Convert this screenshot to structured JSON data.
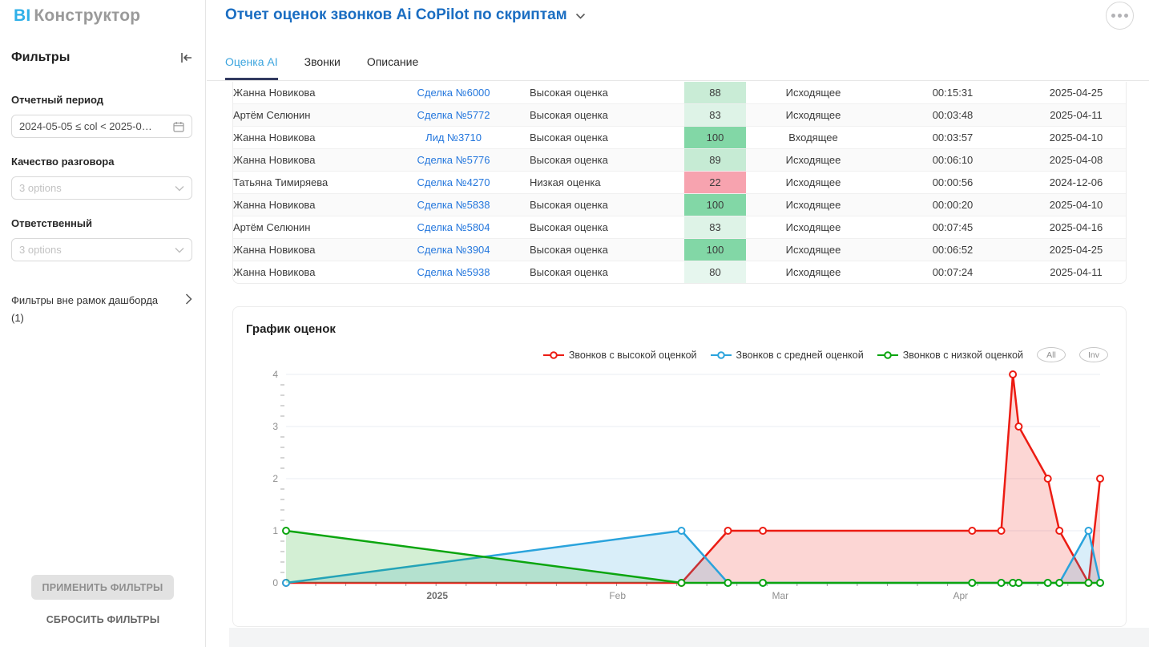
{
  "app": {
    "logo_bi": "BI",
    "logo_name": "Конструктор"
  },
  "sidebar": {
    "title": "Фильтры",
    "filters": [
      {
        "label": "Отчетный период",
        "value": "2024-05-05 ≤ col < 2025-0…"
      },
      {
        "label": "Качество разговора",
        "placeholder": "3 options"
      },
      {
        "label": "Ответственный",
        "placeholder": "3 options"
      }
    ],
    "outer_filters_label": "Фильтры вне рамок дашборда",
    "outer_filters_count": "(1)",
    "apply_button": "ПРИМЕНИТЬ ФИЛЬТРЫ",
    "reset_button": "СБРОСИТЬ ФИЛЬТРЫ"
  },
  "header": {
    "title": "Отчет оценок звонков Ai CoPilot по скриптам"
  },
  "tabs": [
    {
      "label": "Оценка AI",
      "active": true
    },
    {
      "label": "Звонки",
      "active": false
    },
    {
      "label": "Описание",
      "active": false
    }
  ],
  "table": {
    "rows": [
      {
        "responsible": "Жанна Новикова",
        "deal": "Сделка №6000",
        "quality": "Высокая оценка",
        "score": "88",
        "score_bg": "#c9ecd6",
        "direction": "Исходящее",
        "duration": "00:15:31",
        "date": "2025-04-25"
      },
      {
        "responsible": "Артём Селюнин",
        "deal": "Сделка №5772",
        "quality": "Высокая оценка",
        "score": "83",
        "score_bg": "#def3e7",
        "direction": "Исходящее",
        "duration": "00:03:48",
        "date": "2025-04-11"
      },
      {
        "responsible": "Жанна Новикова",
        "deal": "Лид №3710",
        "quality": "Высокая оценка",
        "score": "100",
        "score_bg": "#82d7a6",
        "direction": "Входящее",
        "duration": "00:03:57",
        "date": "2025-04-10"
      },
      {
        "responsible": "Жанна Новикова",
        "deal": "Сделка №5776",
        "quality": "Высокая оценка",
        "score": "89",
        "score_bg": "#c6ebd4",
        "direction": "Исходящее",
        "duration": "00:06:10",
        "date": "2025-04-08"
      },
      {
        "responsible": "Татьяна Тимиряева",
        "deal": "Сделка №4270",
        "quality": "Низкая оценка",
        "score": "22",
        "score_bg": "#f7a3af",
        "direction": "Исходящее",
        "duration": "00:00:56",
        "date": "2024-12-06"
      },
      {
        "responsible": "Жанна Новикова",
        "deal": "Сделка №5838",
        "quality": "Высокая оценка",
        "score": "100",
        "score_bg": "#82d7a6",
        "direction": "Исходящее",
        "duration": "00:00:20",
        "date": "2025-04-10"
      },
      {
        "responsible": "Артём Селюнин",
        "deal": "Сделка №5804",
        "quality": "Высокая оценка",
        "score": "83",
        "score_bg": "#def3e7",
        "direction": "Исходящее",
        "duration": "00:07:45",
        "date": "2025-04-16"
      },
      {
        "responsible": "Жанна Новикова",
        "deal": "Сделка №3904",
        "quality": "Высокая оценка",
        "score": "100",
        "score_bg": "#82d7a6",
        "direction": "Исходящее",
        "duration": "00:06:52",
        "date": "2025-04-25"
      },
      {
        "responsible": "Жанна Новикова",
        "deal": "Сделка №5938",
        "quality": "Высокая оценка",
        "score": "80",
        "score_bg": "#e6f6ee",
        "direction": "Исходящее",
        "duration": "00:07:24",
        "date": "2025-04-11"
      }
    ]
  },
  "chart": {
    "title": "График оценок",
    "range_buttons": [
      "All",
      "Inv"
    ]
  },
  "chart_data": {
    "type": "area",
    "x_dates": [
      "2024-12-06",
      "2025-02-12",
      "2025-02-20",
      "2025-02-26",
      "2025-04-03",
      "2025-04-08",
      "2025-04-10",
      "2025-04-11",
      "2025-04-16",
      "2025-04-18",
      "2025-04-23",
      "2025-04-25"
    ],
    "series": [
      {
        "name": "Звонков с высокой оценкой",
        "color": "#ec1c13",
        "values": [
          0,
          0,
          1,
          1,
          1,
          1,
          4,
          3,
          2,
          1,
          0,
          2
        ]
      },
      {
        "name": "Звонков с средней оценкой",
        "color": "#2aa3dc",
        "values": [
          0,
          1,
          0,
          0,
          0,
          0,
          0,
          0,
          0,
          0,
          1,
          0
        ]
      },
      {
        "name": "Звонков с низкой оценкой",
        "color": "#0ba50f",
        "values": [
          1,
          0,
          0,
          0,
          0,
          0,
          0,
          0,
          0,
          0,
          0,
          0
        ]
      }
    ],
    "ylim": [
      0,
      4
    ],
    "y_ticks": [
      0,
      1,
      2,
      3,
      4
    ],
    "x_axis_labels": [
      {
        "text": "2025",
        "date": "2025-01-01",
        "bold": true
      },
      {
        "text": "Feb",
        "date": "2025-02-01",
        "bold": false
      },
      {
        "text": "Mar",
        "date": "2025-03-01",
        "bold": false
      },
      {
        "text": "Apr",
        "date": "2025-04-01",
        "bold": false
      }
    ],
    "grid": true,
    "legend_position": "top-right"
  }
}
